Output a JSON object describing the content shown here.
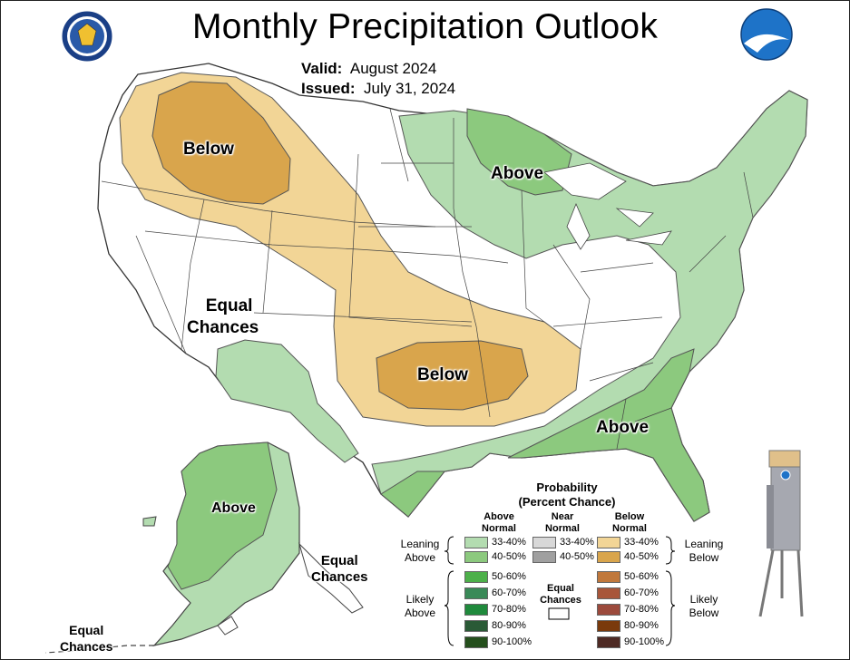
{
  "title": "Monthly Precipitation Outlook",
  "valid": {
    "label": "Valid:",
    "value": "August 2024"
  },
  "issued": {
    "label": "Issued:",
    "value": "July 31, 2024"
  },
  "logos": {
    "left": "dept-of-commerce-seal",
    "right": "noaa-logo"
  },
  "map_labels": {
    "below_nw": "Below",
    "below_south": "Below",
    "above_great_lakes": "Above",
    "above_southeast": "Above",
    "equal_chances_west": [
      "Equal",
      "Chances"
    ],
    "above_alaska": "Above",
    "equal_chances_alaska": [
      "Equal",
      "Chances"
    ],
    "equal_chances_aleutians": [
      "Equal",
      "Chances"
    ]
  },
  "legend": {
    "title": [
      "Probability",
      "(Percent Chance)"
    ],
    "columns": {
      "above": [
        "Above",
        "Normal"
      ],
      "near": [
        "Near",
        "Normal"
      ],
      "below": [
        "Below",
        "Normal"
      ]
    },
    "side_labels": {
      "leaning_above": [
        "Leaning",
        "Above"
      ],
      "likely_above": [
        "Likely",
        "Above"
      ],
      "leaning_below": [
        "Leaning",
        "Below"
      ],
      "likely_below": [
        "Likely",
        "Below"
      ]
    },
    "equal_chances": [
      "Equal",
      "Chances"
    ],
    "above_rows": [
      {
        "label": "33-40%",
        "color": "#b3dcb0"
      },
      {
        "label": "40-50%",
        "color": "#8cc97e"
      },
      {
        "label": "50-60%",
        "color": "#4db04a"
      },
      {
        "label": "60-70%",
        "color": "#3a8a58"
      },
      {
        "label": "70-80%",
        "color": "#1f8a3c"
      },
      {
        "label": "80-90%",
        "color": "#2a5a36"
      },
      {
        "label": "90-100%",
        "color": "#244f1c"
      }
    ],
    "near_rows": [
      {
        "label": "33-40%",
        "color": "#d8d8d8"
      },
      {
        "label": "40-50%",
        "color": "#a0a0a0"
      }
    ],
    "below_rows": [
      {
        "label": "33-40%",
        "color": "#f2d596"
      },
      {
        "label": "40-50%",
        "color": "#d9a54c"
      },
      {
        "label": "50-60%",
        "color": "#c0783c"
      },
      {
        "label": "60-70%",
        "color": "#a8563a"
      },
      {
        "label": "70-80%",
        "color": "#9c4a3c"
      },
      {
        "label": "80-90%",
        "color": "#7a3a0c"
      },
      {
        "label": "90-100%",
        "color": "#4e2a24"
      }
    ]
  }
}
